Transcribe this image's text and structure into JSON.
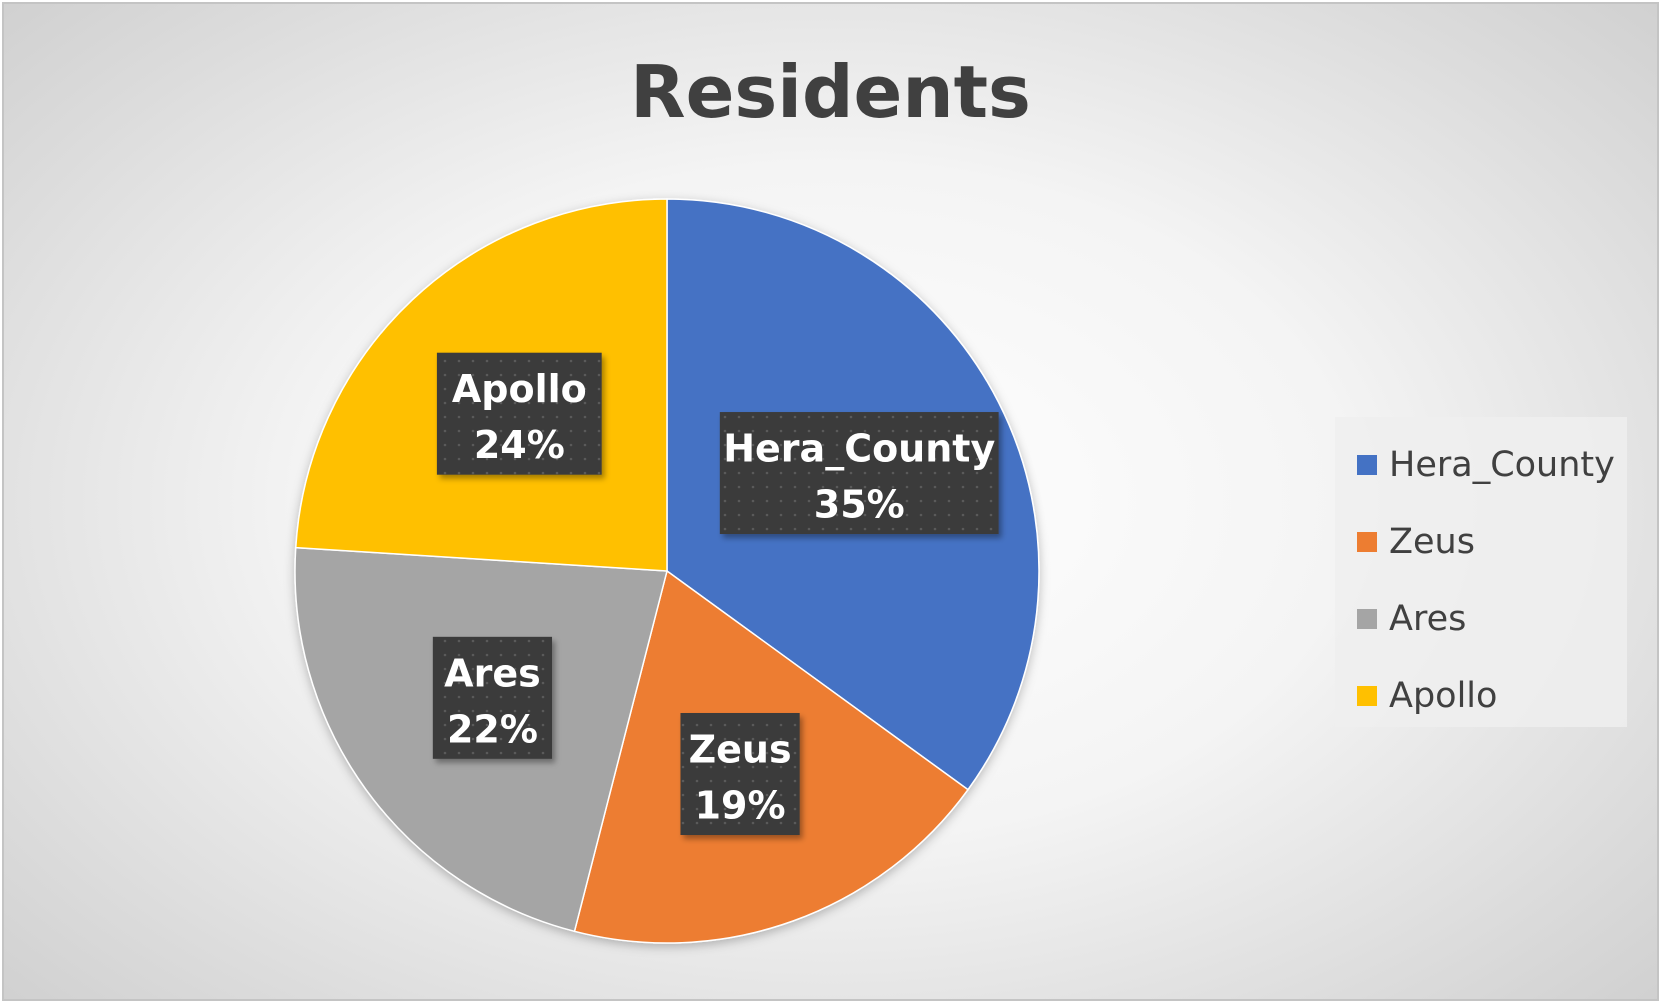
{
  "chart_data": {
    "type": "pie",
    "title": "Residents",
    "legend_position": "right",
    "slices": [
      {
        "name": "Hera_County",
        "value": 35,
        "label": "35%",
        "color": "#4472C4"
      },
      {
        "name": "Zeus",
        "value": 19,
        "label": "19%",
        "color": "#ED7D31"
      },
      {
        "name": "Ares",
        "value": 22,
        "label": "22%",
        "color": "#A5A5A5"
      },
      {
        "name": "Apollo",
        "value": 24,
        "label": "24%",
        "color": "#FFC000"
      }
    ]
  }
}
